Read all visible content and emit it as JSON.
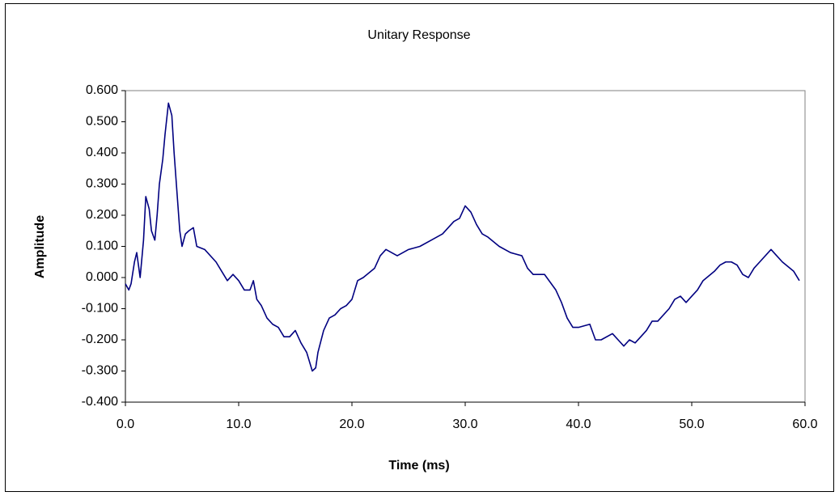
{
  "chart_data": {
    "type": "line",
    "title": "Unitary Response",
    "x_label": "Time (ms)",
    "y_label": "Amplitude",
    "color": "#000080",
    "x": [
      0,
      0.3,
      0.5,
      0.8,
      1.0,
      1.3,
      1.6,
      1.8,
      2.1,
      2.3,
      2.6,
      2.8,
      3.0,
      3.3,
      3.5,
      3.8,
      4.1,
      4.3,
      4.6,
      4.8,
      5.0,
      5.3,
      5.6,
      6.0,
      6.3,
      7.0,
      8.0,
      8.5,
      9.0,
      9.5,
      10.0,
      10.5,
      11.0,
      11.3,
      11.6,
      12.0,
      12.5,
      13.0,
      13.5,
      14.0,
      14.5,
      15.0,
      15.5,
      16.0,
      16.5,
      16.8,
      17.0,
      17.5,
      18.0,
      18.5,
      19.0,
      19.5,
      20.0,
      20.5,
      21.0,
      22.0,
      22.5,
      23.0,
      23.5,
      24.0,
      25.0,
      26.0,
      27.0,
      28.0,
      29.0,
      29.5,
      30.0,
      30.5,
      31.0,
      31.5,
      32.0,
      33.0,
      34.0,
      35.0,
      35.5,
      36.0,
      37.0,
      38.0,
      38.5,
      39.0,
      39.5,
      40.0,
      41.0,
      41.5,
      42.0,
      43.0,
      43.5,
      44.0,
      44.5,
      45.0,
      45.5,
      46.0,
      46.5,
      47.0,
      48.0,
      48.5,
      49.0,
      49.5,
      50.0,
      50.5,
      51.0,
      52.0,
      52.5,
      53.0,
      53.5,
      54.0,
      54.5,
      55.0,
      55.5,
      56.0,
      57.0,
      57.5,
      58.0,
      59.0,
      59.5
    ],
    "values": [
      -0.02,
      -0.04,
      -0.02,
      0.05,
      0.08,
      0.0,
      0.12,
      0.26,
      0.22,
      0.15,
      0.12,
      0.2,
      0.3,
      0.38,
      0.46,
      0.56,
      0.52,
      0.4,
      0.25,
      0.15,
      0.1,
      0.14,
      0.15,
      0.16,
      0.1,
      0.09,
      0.05,
      0.02,
      -0.01,
      0.01,
      -0.01,
      -0.04,
      -0.04,
      -0.01,
      -0.07,
      -0.09,
      -0.13,
      -0.15,
      -0.16,
      -0.19,
      -0.19,
      -0.17,
      -0.21,
      -0.24,
      -0.3,
      -0.29,
      -0.24,
      -0.17,
      -0.13,
      -0.12,
      -0.1,
      -0.09,
      -0.07,
      -0.01,
      0.0,
      0.03,
      0.07,
      0.09,
      0.08,
      0.07,
      0.09,
      0.1,
      0.12,
      0.14,
      0.18,
      0.19,
      0.23,
      0.21,
      0.17,
      0.14,
      0.13,
      0.1,
      0.08,
      0.07,
      0.03,
      0.01,
      0.01,
      -0.04,
      -0.08,
      -0.13,
      -0.16,
      -0.16,
      -0.15,
      -0.2,
      -0.2,
      -0.18,
      -0.2,
      -0.22,
      -0.2,
      -0.21,
      -0.19,
      -0.17,
      -0.14,
      -0.14,
      -0.1,
      -0.07,
      -0.06,
      -0.08,
      -0.06,
      -0.04,
      -0.01,
      0.02,
      0.04,
      0.05,
      0.05,
      0.04,
      0.01,
      0.0,
      0.03,
      0.05,
      0.09,
      0.07,
      0.05,
      0.02,
      -0.01
    ],
    "xlim": [
      0,
      60
    ],
    "xticks": [
      {
        "value": 0,
        "label": "0.0"
      },
      {
        "value": 10,
        "label": "10.0"
      },
      {
        "value": 20,
        "label": "20.0"
      },
      {
        "value": 30,
        "label": "30.0"
      },
      {
        "value": 40,
        "label": "40.0"
      },
      {
        "value": 50,
        "label": "50.0"
      },
      {
        "value": 60,
        "label": "60.0"
      }
    ],
    "ylim": [
      -0.4,
      0.6
    ],
    "yticks": [
      {
        "value": -0.4,
        "label": "-0.400"
      },
      {
        "value": -0.3,
        "label": "-0.300"
      },
      {
        "value": -0.2,
        "label": "-0.200"
      },
      {
        "value": -0.1,
        "label": "-0.100"
      },
      {
        "value": 0,
        "label": "0.000"
      },
      {
        "value": 0.1,
        "label": "0.100"
      },
      {
        "value": 0.2,
        "label": "0.200"
      },
      {
        "value": 0.3,
        "label": "0.300"
      },
      {
        "value": 0.4,
        "label": "0.400"
      },
      {
        "value": 0.5,
        "label": "0.500"
      },
      {
        "value": 0.6,
        "label": "0.600"
      }
    ]
  }
}
